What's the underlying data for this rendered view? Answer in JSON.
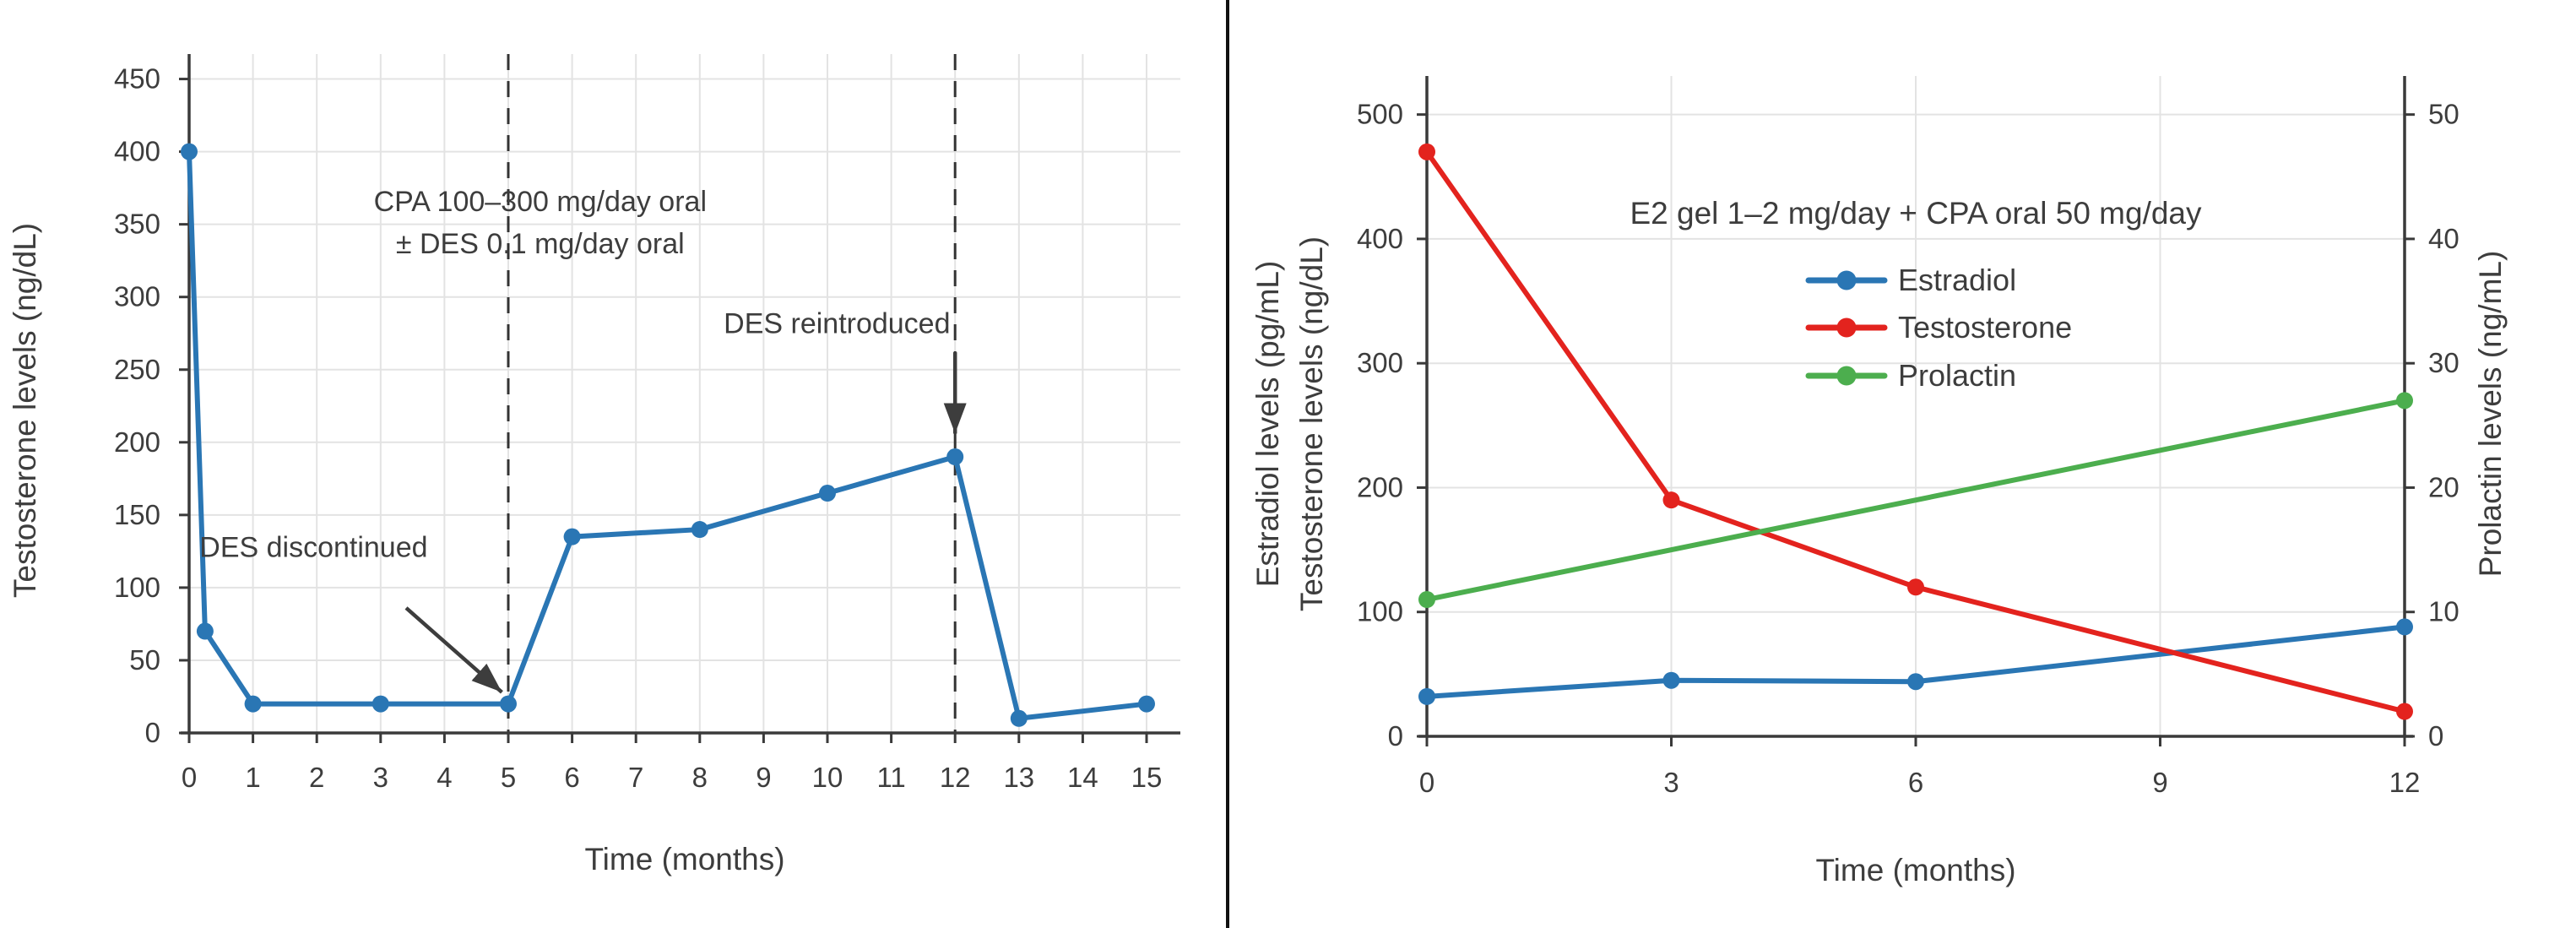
{
  "figure": {
    "background": "#ffffff",
    "divider_color": "#111111",
    "text_color": "#3d3d3d",
    "spine_color": "#3a3a3a",
    "grid_color": "#e3e3e3",
    "dashed_line_color": "#333333",
    "arrow_color": "#3d3d3d"
  },
  "chart_data": [
    {
      "type": "line",
      "title": "",
      "xlabel": "Time (months)",
      "ylabel": "Testosterone levels (ng/dL)",
      "xlim": [
        0,
        15.6
      ],
      "ylim": [
        0,
        472
      ],
      "xticks": [
        0,
        1,
        2,
        3,
        4,
        5,
        6,
        7,
        8,
        9,
        10,
        11,
        12,
        13,
        14,
        15
      ],
      "yticks": [
        0,
        50,
        100,
        150,
        200,
        250,
        300,
        350,
        400,
        450
      ],
      "grid": true,
      "legend": null,
      "series": [
        {
          "name": "Testosterone",
          "color": "#2a76b4",
          "axis": "left",
          "x": [
            0,
            0.25,
            1,
            3,
            5,
            6,
            8,
            10,
            12,
            13,
            15
          ],
          "y": [
            400,
            70,
            20,
            20,
            20,
            135,
            140,
            165,
            190,
            10,
            20
          ]
        }
      ],
      "vlines": [
        {
          "x": 5
        },
        {
          "x": 12
        }
      ],
      "annotations": [
        {
          "id": "cpa-regimen-line1",
          "text": "CPA 100–300 mg/day oral",
          "x": 5.5,
          "y": 366
        },
        {
          "id": "cpa-regimen-line2",
          "text": "± DES 0.1 mg/day oral",
          "x": 5.5,
          "y": 337
        },
        {
          "id": "des-discontinued",
          "text": "DES discontinued",
          "x": 1.95,
          "y": 128
        },
        {
          "id": "des-reintroduced",
          "text": "DES reintroduced",
          "x": 10.15,
          "y": 282
        }
      ],
      "arrows": [
        {
          "id": "des-discontinued-arrow",
          "from": {
            "x": 3.4,
            "y": 86
          },
          "to": {
            "x": 4.9,
            "y": 28
          }
        },
        {
          "id": "des-reintroduced-arrow",
          "from": {
            "x": 12,
            "y": 262
          },
          "to": {
            "x": 12,
            "y": 206
          }
        }
      ]
    },
    {
      "type": "line",
      "title": "E2 gel 1–2 mg/day + CPA oral 50 mg/day",
      "xlabel": "Time (months)",
      "ylabels_left": [
        "Estradiol levels (pg/mL)",
        "Testosterone levels (ng/dL)"
      ],
      "ylabel_right": "Prolactin levels (ng/mL)",
      "xlim": [
        0,
        12
      ],
      "ylim_left": [
        0,
        531
      ],
      "ylim_right": [
        0,
        53.1
      ],
      "xticks": [
        0,
        3,
        6,
        9,
        12
      ],
      "yticks_left": [
        0,
        100,
        200,
        300,
        400,
        500
      ],
      "yticks_right": [
        0,
        10,
        20,
        30,
        40,
        50
      ],
      "grid": true,
      "legend": {
        "position": "center",
        "frame": false
      },
      "series": [
        {
          "name": "Estradiol",
          "color": "#2a76b4",
          "axis": "left",
          "x": [
            0,
            3,
            6,
            12
          ],
          "y": [
            32,
            45,
            44,
            88
          ]
        },
        {
          "name": "Testosterone",
          "color": "#e3231e",
          "axis": "left",
          "x": [
            0,
            3,
            6,
            12
          ],
          "y": [
            470,
            190,
            120,
            20
          ]
        },
        {
          "name": "Prolactin",
          "color": "#4cae4e",
          "axis": "right",
          "x": [
            0,
            12
          ],
          "y": [
            11,
            27
          ]
        }
      ],
      "vlines": [],
      "annotations": [],
      "arrows": []
    }
  ]
}
